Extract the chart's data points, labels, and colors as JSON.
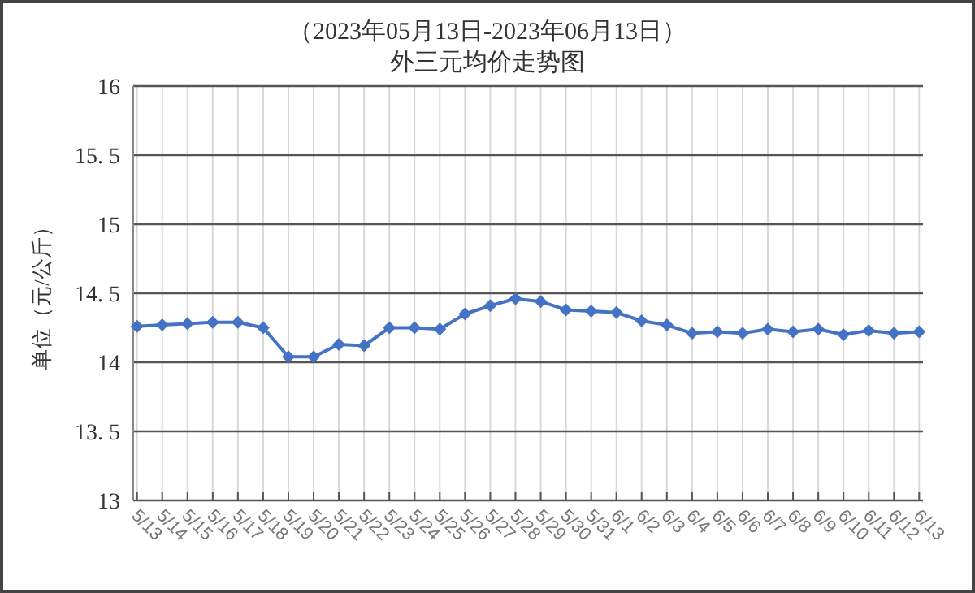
{
  "chart_data": {
    "type": "line",
    "title": "（2023年05月13日-2023年06月13日）",
    "subtitle": "外三元均价走势图",
    "ylabel": "单位（元/公斤）",
    "categories": [
      "5/13",
      "5/14",
      "5/15",
      "5/16",
      "5/17",
      "5/18",
      "5/19",
      "5/20",
      "5/21",
      "5/22",
      "5/23",
      "5/24",
      "5/25",
      "5/26",
      "5/27",
      "5/28",
      "5/29",
      "5/30",
      "5/31",
      "6/1",
      "6/2",
      "6/3",
      "6/4",
      "6/5",
      "6/6",
      "6/7",
      "6/8",
      "6/9",
      "6/10",
      "6/11",
      "6/12",
      "6/13"
    ],
    "series": [
      {
        "color": "#4472c4",
        "values": [
          14.26,
          14.27,
          14.28,
          14.29,
          14.29,
          14.25,
          14.04,
          14.04,
          14.13,
          14.12,
          14.25,
          14.25,
          14.24,
          14.35,
          14.41,
          14.46,
          14.44,
          14.38,
          14.37,
          14.36,
          14.3,
          14.27,
          14.21,
          14.22,
          14.21,
          14.24,
          14.22,
          14.24,
          14.2,
          14.23,
          14.21,
          14.22
        ]
      }
    ],
    "ylim": [
      13,
      16
    ],
    "yticks": [
      13,
      {
        "value": 13.5,
        "label": "13. 5"
      },
      14,
      {
        "value": 14.5,
        "label": "14. 5"
      },
      15,
      {
        "value": 15.5,
        "label": "15. 5"
      },
      16
    ],
    "grid": true,
    "marker": "diamond",
    "line_style": "solid"
  }
}
